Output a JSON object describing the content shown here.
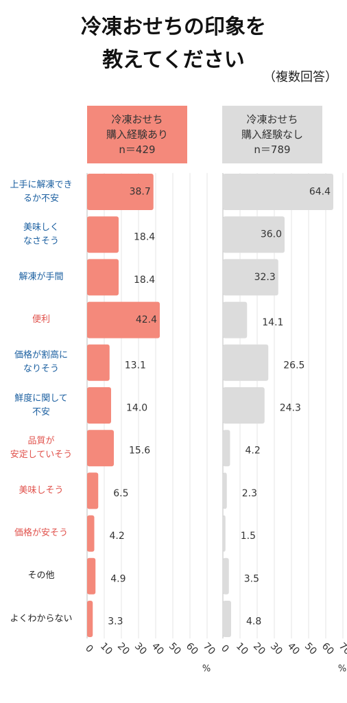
{
  "title_line1": "冷凍おせちの印象を",
  "title_line2": "教えてください",
  "subtitle": "（複数回答）",
  "groups": [
    {
      "line1": "冷凍おせち",
      "line2": "購入経験あり",
      "line3": "n＝429",
      "color": "#f4897b"
    },
    {
      "line1": "冷凍おせち",
      "line2": "購入経験なし",
      "line3": "n＝789",
      "color": "#dcdcdc"
    }
  ],
  "colors": {
    "positive": "#e0514b",
    "negative": "#1b5fa0",
    "neutral": "#222222"
  },
  "categories": [
    {
      "lines": [
        "上手に解凍でき",
        "るか不安"
      ],
      "tone": "negative"
    },
    {
      "lines": [
        "美味しく",
        "なさそう"
      ],
      "tone": "negative"
    },
    {
      "lines": [
        "解凍が手間"
      ],
      "tone": "negative"
    },
    {
      "lines": [
        "便利"
      ],
      "tone": "positive"
    },
    {
      "lines": [
        "価格が割高に",
        "なりそう"
      ],
      "tone": "negative"
    },
    {
      "lines": [
        "鮮度に関して",
        "不安"
      ],
      "tone": "negative"
    },
    {
      "lines": [
        "品質が",
        "安定していそう"
      ],
      "tone": "positive"
    },
    {
      "lines": [
        "美味しそう"
      ],
      "tone": "positive"
    },
    {
      "lines": [
        "価格が安そう"
      ],
      "tone": "positive"
    },
    {
      "lines": [
        "その他"
      ],
      "tone": "neutral"
    },
    {
      "lines": [
        "よくわからない"
      ],
      "tone": "neutral"
    }
  ],
  "chart_data": {
    "type": "bar",
    "orientation": "horizontal",
    "categories": [
      "上手に解凍できるか不安",
      "美味しくなさそう",
      "解凍が手間",
      "便利",
      "価格が割高になりそう",
      "鮮度に関して不安",
      "品質が安定していそう",
      "美味しそう",
      "価格が安そう",
      "その他",
      "よくわからない"
    ],
    "series": [
      {
        "name": "冷凍おせち購入経験あり n＝429",
        "values": [
          38.7,
          18.4,
          18.4,
          42.4,
          13.1,
          14.0,
          15.6,
          6.5,
          4.2,
          4.9,
          3.3
        ]
      },
      {
        "name": "冷凍おせち購入経験なし n＝789",
        "values": [
          64.4,
          36.0,
          32.3,
          14.1,
          26.5,
          24.3,
          4.2,
          2.3,
          1.5,
          3.5,
          4.8
        ]
      }
    ],
    "xlim": [
      0,
      70
    ],
    "xticks": [
      "0",
      "10",
      "20",
      "30",
      "40",
      "50",
      "60",
      "70"
    ],
    "xlabel": "%",
    "grid": true
  }
}
